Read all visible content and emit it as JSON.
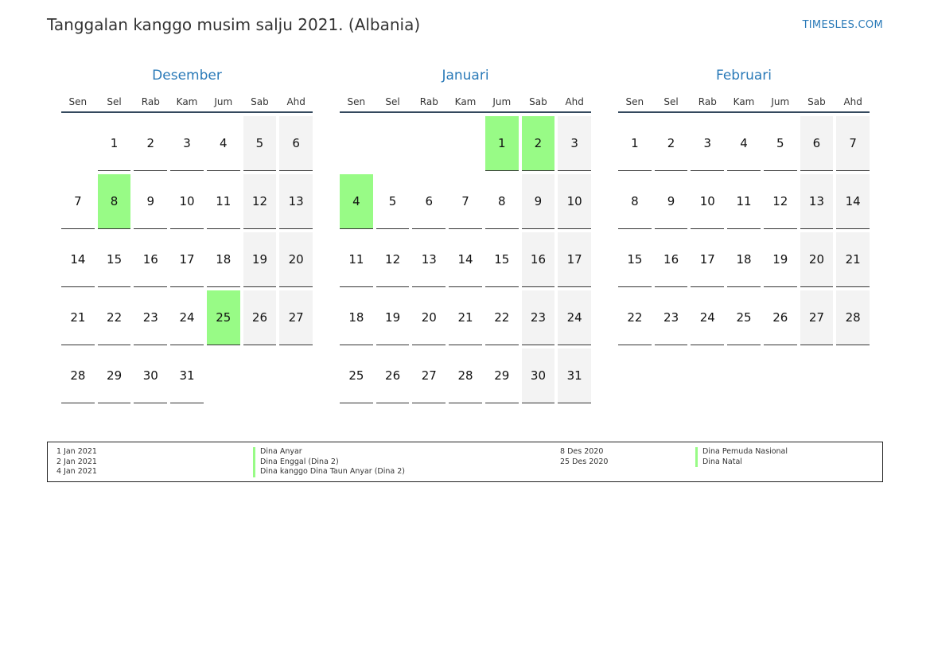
{
  "header": {
    "title": "Tanggalan kanggo musim salju 2021. (Albania)",
    "brand": "TIMESLES.COM"
  },
  "colors": {
    "accent": "#2a7ab8",
    "holiday": "#98fb86",
    "weekend": "#f3f3f3"
  },
  "weekdays": [
    "Sen",
    "Sel",
    "Rab",
    "Kam",
    "Jum",
    "Sab",
    "Ahd"
  ],
  "months": [
    {
      "name": "Desember",
      "weeks": [
        [
          "",
          "1",
          "2",
          "3",
          "4",
          "5",
          "6"
        ],
        [
          "7",
          "8",
          "9",
          "10",
          "11",
          "12",
          "13"
        ],
        [
          "14",
          "15",
          "16",
          "17",
          "18",
          "19",
          "20"
        ],
        [
          "21",
          "22",
          "23",
          "24",
          "25",
          "26",
          "27"
        ],
        [
          "28",
          "29",
          "30",
          "31",
          "",
          "",
          ""
        ]
      ],
      "holidays": [
        "8",
        "25"
      ]
    },
    {
      "name": "Januari",
      "weeks": [
        [
          "",
          "",
          "",
          "",
          "1",
          "2",
          "3"
        ],
        [
          "4",
          "5",
          "6",
          "7",
          "8",
          "9",
          "10"
        ],
        [
          "11",
          "12",
          "13",
          "14",
          "15",
          "16",
          "17"
        ],
        [
          "18",
          "19",
          "20",
          "21",
          "22",
          "23",
          "24"
        ],
        [
          "25",
          "26",
          "27",
          "28",
          "29",
          "30",
          "31"
        ]
      ],
      "holidays": [
        "1",
        "2",
        "4"
      ]
    },
    {
      "name": "Februari",
      "weeks": [
        [
          "1",
          "2",
          "3",
          "4",
          "5",
          "6",
          "7"
        ],
        [
          "8",
          "9",
          "10",
          "11",
          "12",
          "13",
          "14"
        ],
        [
          "15",
          "16",
          "17",
          "18",
          "19",
          "20",
          "21"
        ],
        [
          "22",
          "23",
          "24",
          "25",
          "26",
          "27",
          "28"
        ]
      ],
      "holidays": []
    }
  ],
  "legend": {
    "left": [
      {
        "date": "1 Jan 2021",
        "name": "Dina Anyar"
      },
      {
        "date": "2 Jan 2021",
        "name": "Dina Enggal (Dina 2)"
      },
      {
        "date": "4 Jan 2021",
        "name": "Dina kanggo Dina Taun Anyar (Dina 2)"
      }
    ],
    "right": [
      {
        "date": "8 Des 2020",
        "name": "Dina Pemuda Nasional"
      },
      {
        "date": "25 Des 2020",
        "name": "Dina Natal"
      }
    ]
  }
}
